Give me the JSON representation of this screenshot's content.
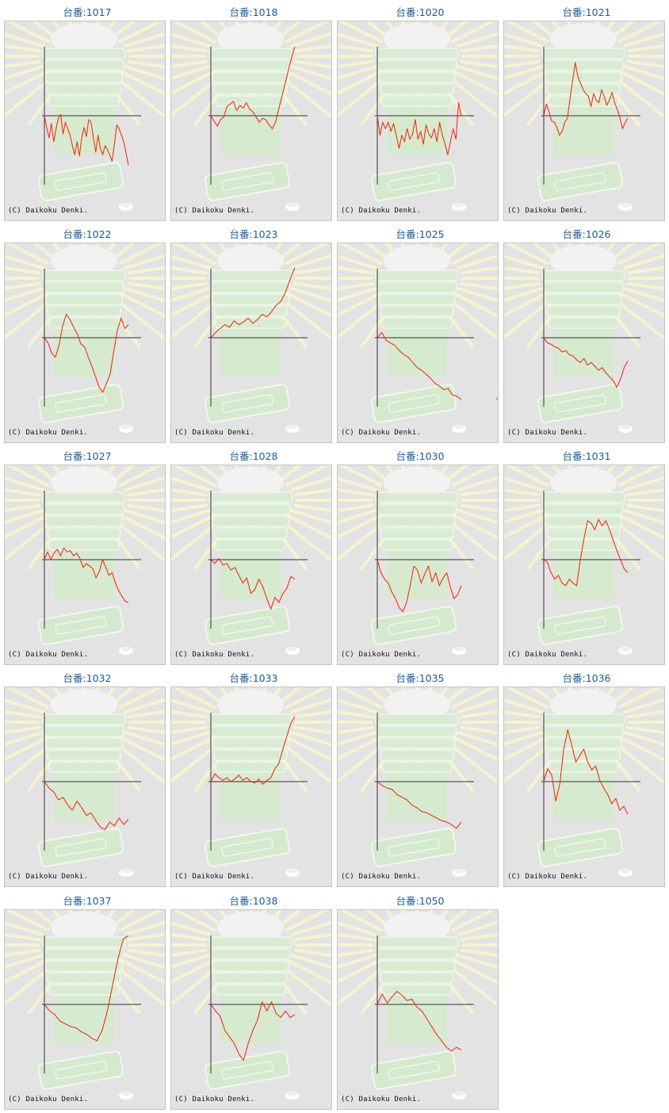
{
  "copyright": "(C) Daikoku Denki.",
  "colors": {
    "line": "#ee3311",
    "axis": "#333333",
    "title": "#1a5a99",
    "panel_bg": "#e3e3e3"
  },
  "charts": [
    {
      "title": "台番:1017",
      "chart_data": {
        "type": "line",
        "y": [
          0,
          -0.18,
          -0.34,
          -0.12,
          -0.4,
          -0.2,
          -0.04,
          0.02,
          -0.28,
          -0.1,
          -0.2,
          -0.3,
          -0.46,
          -0.6,
          -0.4,
          -0.62,
          -0.34,
          -0.18,
          -0.32,
          -0.06,
          -0.1,
          -0.34,
          -0.56,
          -0.3,
          -0.5,
          -0.6,
          -0.46,
          -0.52,
          -0.6,
          -0.7,
          -0.44,
          -0.14,
          -0.2,
          -0.3,
          -0.4,
          -0.58,
          -0.76
        ]
      }
    },
    {
      "title": "台番:1018",
      "chart_data": {
        "type": "line",
        "y": [
          0,
          -0.08,
          -0.16,
          -0.06,
          -0.02,
          0.14,
          0.18,
          0.22,
          0.08,
          0.16,
          0.12,
          0.2,
          0.1,
          0.06,
          -0.02,
          -0.1,
          -0.04,
          -0.06,
          -0.14,
          -0.2,
          -0.1,
          0.1,
          0.3,
          0.5,
          0.7,
          0.9,
          1.06
        ]
      }
    },
    {
      "title": "台番:1020",
      "chart_data": {
        "type": "line",
        "y": [
          0,
          -0.3,
          -0.1,
          -0.2,
          -0.1,
          -0.24,
          -0.12,
          -0.3,
          -0.5,
          -0.3,
          -0.4,
          -0.2,
          -0.36,
          -0.28,
          -0.06,
          -0.36,
          -0.24,
          -0.44,
          -0.14,
          -0.28,
          -0.34,
          -0.2,
          -0.4,
          -0.1,
          -0.3,
          -0.44,
          -0.6,
          -0.4,
          -0.2,
          -0.36,
          0.2,
          0
        ]
      }
    },
    {
      "title": "台番:1021",
      "chart_data": {
        "type": "line",
        "y": [
          0,
          0.18,
          0.06,
          -0.08,
          -0.1,
          -0.18,
          -0.3,
          -0.24,
          -0.1,
          -0.04,
          0.26,
          0.54,
          0.82,
          0.6,
          0.5,
          0.4,
          0.34,
          0.3,
          0.14,
          0.34,
          0.24,
          0.2,
          0.4,
          0.3,
          0.16,
          0.24,
          0.36,
          0.2,
          0.1,
          -0.04,
          -0.2,
          -0.1,
          -0.04
        ]
      }
    },
    {
      "title": "台番:1022",
      "chart_data": {
        "type": "line",
        "y": [
          0,
          -0.08,
          -0.24,
          -0.3,
          -0.12,
          0.18,
          0.36,
          0.28,
          0.16,
          0.06,
          -0.1,
          -0.14,
          -0.3,
          -0.44,
          -0.6,
          -0.76,
          -0.84,
          -0.7,
          -0.56,
          -0.2,
          0.12,
          0.3,
          0.14,
          0.2
        ]
      }
    },
    {
      "title": "台番:1023",
      "chart_data": {
        "type": "line",
        "y": [
          0,
          0.08,
          0.14,
          0.2,
          0.16,
          0.26,
          0.2,
          0.24,
          0.3,
          0.22,
          0.28,
          0.36,
          0.32,
          0.4,
          0.5,
          0.56,
          0.7,
          0.9,
          1.08
        ]
      }
    },
    {
      "title": "台番:1025",
      "chart_data": {
        "type": "line",
        "y": [
          0,
          0.08,
          -0.04,
          -0.08,
          -0.12,
          -0.2,
          -0.26,
          -0.3,
          -0.38,
          -0.46,
          -0.5,
          -0.56,
          -0.62,
          -0.7,
          -0.74,
          -0.8,
          -0.78,
          -0.88,
          -0.9,
          -0.95
        ],
        "gap_points": [
          [
            100,
            -0.94
          ],
          [
            102,
            -0.92
          ]
        ]
      }
    },
    {
      "title": "台番:1026",
      "chart_data": {
        "type": "line",
        "y": [
          0,
          -0.08,
          -0.1,
          -0.14,
          -0.16,
          -0.22,
          -0.2,
          -0.26,
          -0.28,
          -0.34,
          -0.38,
          -0.32,
          -0.42,
          -0.38,
          -0.44,
          -0.5,
          -0.46,
          -0.54,
          -0.6,
          -0.66,
          -0.76,
          -0.64,
          -0.46,
          -0.36
        ]
      }
    },
    {
      "title": "台番:1027",
      "chart_data": {
        "type": "line",
        "y": [
          0,
          0.12,
          0,
          0.1,
          0.16,
          0.06,
          0.18,
          0.12,
          0.14,
          0.06,
          0.1,
          0.02,
          -0.12,
          -0.06,
          -0.1,
          -0.14,
          -0.28,
          -0.18,
          0,
          -0.12,
          -0.24,
          -0.2,
          -0.36,
          -0.48,
          -0.56,
          -0.64,
          -0.66
        ]
      }
    },
    {
      "title": "台番:1028",
      "chart_data": {
        "type": "line",
        "y": [
          0,
          -0.06,
          0.02,
          -0.08,
          -0.06,
          -0.16,
          -0.12,
          -0.24,
          -0.36,
          -0.28,
          -0.52,
          -0.46,
          -0.3,
          -0.42,
          -0.6,
          -0.76,
          -0.58,
          -0.66,
          -0.52,
          -0.44,
          -0.26,
          -0.3
        ]
      }
    },
    {
      "title": "台番:1030",
      "chart_data": {
        "type": "line",
        "y": [
          0,
          -0.2,
          -0.3,
          -0.36,
          -0.5,
          -0.6,
          -0.74,
          -0.8,
          -0.66,
          -0.4,
          -0.1,
          -0.16,
          -0.36,
          -0.22,
          -0.1,
          -0.34,
          -0.2,
          -0.4,
          -0.28,
          -0.2,
          -0.42,
          -0.6,
          -0.54,
          -0.4
        ]
      }
    },
    {
      "title": "台番:1031",
      "chart_data": {
        "type": "line",
        "y": [
          0,
          -0.04,
          -0.2,
          -0.3,
          -0.24,
          -0.36,
          -0.4,
          -0.3,
          -0.36,
          -0.4,
          0,
          0.32,
          0.6,
          0.56,
          0.46,
          0.62,
          0.52,
          0.6,
          0.46,
          0.3,
          0.14,
          0,
          -0.14,
          -0.2
        ]
      }
    },
    {
      "title": "台番:1032",
      "chart_data": {
        "type": "line",
        "y": [
          0,
          -0.1,
          -0.16,
          -0.28,
          -0.24,
          -0.36,
          -0.44,
          -0.3,
          -0.4,
          -0.52,
          -0.48,
          -0.6,
          -0.7,
          -0.74,
          -0.62,
          -0.68,
          -0.56,
          -0.66,
          -0.58
        ]
      }
    },
    {
      "title": "台番:1033",
      "chart_data": {
        "type": "line",
        "y": [
          0,
          0.12,
          0.06,
          0.02,
          0.06,
          0,
          0.04,
          0.1,
          0.02,
          0.06,
          0,
          -0.02,
          0.04,
          -0.04,
          0.02,
          0.06,
          0.2,
          0.28,
          0.5,
          0.7,
          0.9,
          1.0
        ]
      }
    },
    {
      "title": "台番:1035",
      "chart_data": {
        "type": "line",
        "y": [
          0,
          -0.06,
          -0.1,
          -0.12,
          -0.2,
          -0.24,
          -0.28,
          -0.36,
          -0.4,
          -0.46,
          -0.48,
          -0.52,
          -0.56,
          -0.6,
          -0.62,
          -0.66,
          -0.72,
          -0.62
        ]
      }
    },
    {
      "title": "台番:1036",
      "chart_data": {
        "type": "line",
        "y": [
          0,
          0.2,
          0.1,
          -0.3,
          -0.04,
          0.5,
          0.8,
          0.56,
          0.3,
          0.4,
          0.5,
          0.3,
          0.18,
          0.24,
          0.02,
          -0.1,
          -0.2,
          -0.34,
          -0.26,
          -0.44,
          -0.38,
          -0.5
        ]
      }
    },
    {
      "title": "台番:1037",
      "chart_data": {
        "type": "line",
        "y": [
          0,
          -0.1,
          -0.16,
          -0.26,
          -0.3,
          -0.34,
          -0.36,
          -0.42,
          -0.46,
          -0.52,
          -0.56,
          -0.4,
          -0.1,
          0.3,
          0.7,
          1.0,
          1.06
        ]
      }
    },
    {
      "title": "台番:1038",
      "chart_data": {
        "type": "line",
        "y": [
          0,
          -0.1,
          -0.18,
          -0.4,
          -0.5,
          -0.6,
          -0.76,
          -0.86,
          -0.6,
          -0.4,
          -0.24,
          0.04,
          -0.1,
          0.04,
          -0.14,
          -0.2,
          -0.1,
          -0.2,
          -0.16
        ]
      }
    },
    {
      "title": "台番:1050",
      "chart_data": {
        "type": "line",
        "y": [
          0,
          0.16,
          0.02,
          0.12,
          0.2,
          0.14,
          0.06,
          0.08,
          -0.04,
          -0.1,
          -0.22,
          -0.34,
          -0.46,
          -0.56,
          -0.66,
          -0.72,
          -0.66,
          -0.7
        ]
      }
    }
  ]
}
